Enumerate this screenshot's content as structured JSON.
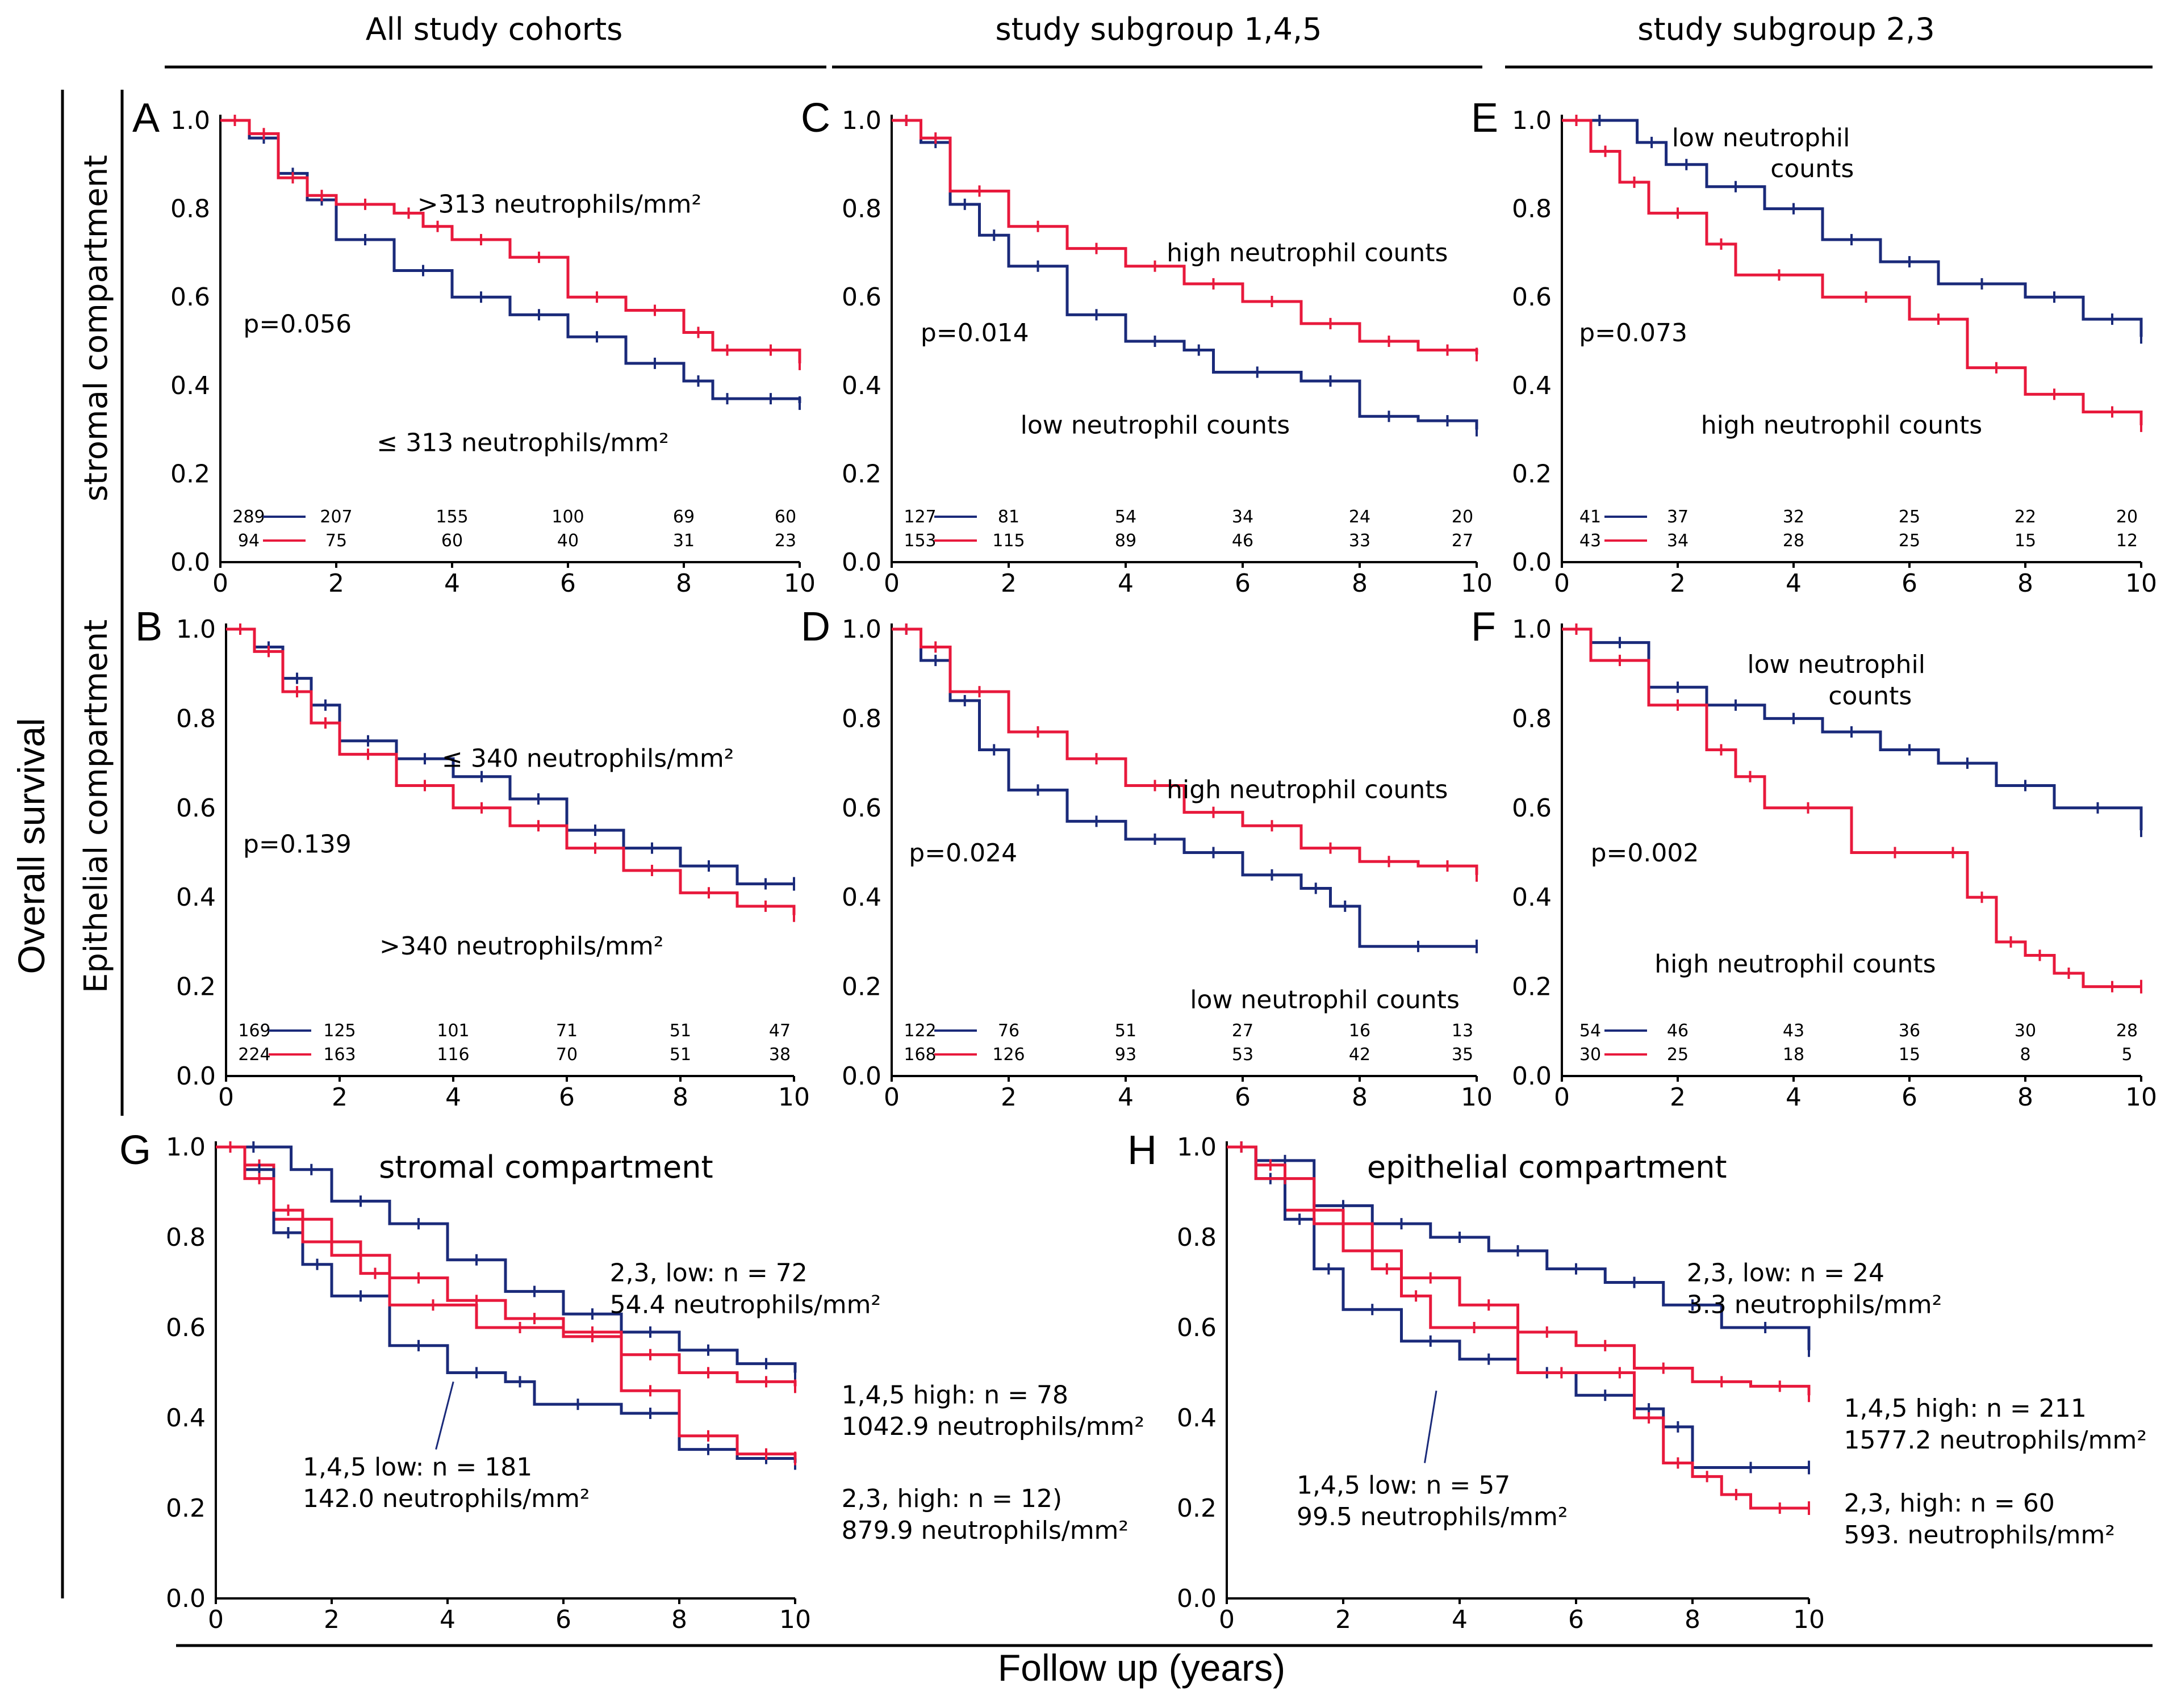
{
  "figure": {
    "column_titles": [
      "All study cohorts",
      "study subgroup 1,4,5",
      "study subgroup 2,3"
    ],
    "y_title": "Overall survival",
    "row_titles": [
      "stromal compartment",
      "Epithelial compartment"
    ],
    "x_title": "Follow up (years)"
  },
  "colors": {
    "low": "#1a2a7a",
    "high": "#e8193c"
  },
  "chart_data": [
    {
      "id": "A",
      "type": "line",
      "xlim": [
        0,
        10
      ],
      "ylim": [
        0,
        1
      ],
      "xticks": [
        "0",
        "2",
        "4",
        "6",
        "8",
        "10"
      ],
      "yticks": [
        "0.0",
        "0.2",
        "0.4",
        "0.6",
        "0.8",
        "1.0"
      ],
      "pvalue": "p=0.056",
      "annotations": [
        ">313 neutrophils/mm²",
        "≤ 313 neutrophils/mm²"
      ],
      "series": [
        {
          "name": "≤ 313 neutrophils/mm²",
          "color": "low",
          "x": [
            0,
            0.5,
            1,
            1.5,
            2,
            3,
            4,
            5,
            6,
            7,
            8,
            8.5,
            9,
            10
          ],
          "y": [
            1,
            0.96,
            0.88,
            0.82,
            0.73,
            0.66,
            0.6,
            0.56,
            0.51,
            0.45,
            0.41,
            0.37,
            0.37,
            0.36
          ]
        },
        {
          "name": ">313 neutrophils/mm²",
          "color": "high",
          "x": [
            0,
            0.5,
            1,
            1.5,
            2,
            3,
            3.5,
            4,
            5,
            6,
            7,
            8,
            8.5,
            9,
            10
          ],
          "y": [
            1,
            0.97,
            0.87,
            0.83,
            0.81,
            0.79,
            0.76,
            0.73,
            0.69,
            0.6,
            0.57,
            0.52,
            0.48,
            0.48,
            0.45
          ]
        }
      ],
      "risk": {
        "low": [
          "289",
          "207",
          "155",
          "100",
          "69",
          "60"
        ],
        "high": [
          "94",
          "75",
          "60",
          "40",
          "31",
          "23"
        ]
      }
    },
    {
      "id": "B",
      "type": "line",
      "xlim": [
        0,
        10
      ],
      "ylim": [
        0,
        1
      ],
      "xticks": [
        "0",
        "2",
        "4",
        "6",
        "8",
        "10"
      ],
      "yticks": [
        "0.0",
        "0.2",
        "0.4",
        "0.6",
        "0.8",
        "1.0"
      ],
      "pvalue": "p=0.139",
      "annotations": [
        "≤ 340 neutrophils/mm²",
        ">340 neutrophils/mm²"
      ],
      "series": [
        {
          "name": "≤ 340 neutrophils/mm²",
          "color": "low",
          "x": [
            0,
            0.5,
            1,
            1.5,
            2,
            3,
            4,
            5,
            6,
            7,
            8,
            9,
            10
          ],
          "y": [
            1,
            0.96,
            0.89,
            0.83,
            0.75,
            0.71,
            0.67,
            0.62,
            0.55,
            0.51,
            0.47,
            0.43,
            0.43
          ]
        },
        {
          "name": ">340 neutrophils/mm²",
          "color": "high",
          "x": [
            0,
            0.5,
            1,
            1.5,
            2,
            3,
            4,
            5,
            6,
            7,
            8,
            9,
            10
          ],
          "y": [
            1,
            0.95,
            0.86,
            0.79,
            0.72,
            0.65,
            0.6,
            0.56,
            0.51,
            0.46,
            0.41,
            0.38,
            0.36
          ]
        }
      ],
      "risk": {
        "low": [
          "169",
          "125",
          "101",
          "71",
          "51",
          "47"
        ],
        "high": [
          "224",
          "163",
          "116",
          "70",
          "51",
          "38"
        ]
      }
    },
    {
      "id": "C",
      "type": "line",
      "xlim": [
        0,
        10
      ],
      "ylim": [
        0,
        1
      ],
      "xticks": [
        "0",
        "2",
        "4",
        "6",
        "8",
        "10"
      ],
      "yticks": [
        "0.0",
        "0.2",
        "0.4",
        "0.6",
        "0.8",
        "1.0"
      ],
      "pvalue": "p=0.014",
      "annotations": [
        "high neutrophil counts",
        "low neutrophil counts"
      ],
      "series": [
        {
          "name": "low neutrophil counts",
          "color": "low",
          "x": [
            0,
            0.5,
            1,
            1.5,
            2,
            3,
            4,
            5,
            5.5,
            7,
            8,
            9,
            10
          ],
          "y": [
            1,
            0.95,
            0.81,
            0.74,
            0.67,
            0.56,
            0.5,
            0.48,
            0.43,
            0.41,
            0.33,
            0.32,
            0.3
          ]
        },
        {
          "name": "high neutrophil counts",
          "color": "high",
          "x": [
            0,
            0.5,
            1,
            2,
            3,
            4,
            5,
            6,
            7,
            8,
            9,
            10
          ],
          "y": [
            1,
            0.96,
            0.84,
            0.76,
            0.71,
            0.67,
            0.63,
            0.59,
            0.54,
            0.5,
            0.48,
            0.47
          ]
        }
      ],
      "risk": {
        "low": [
          "127",
          "81",
          "54",
          "34",
          "24",
          "20"
        ],
        "high": [
          "153",
          "115",
          "89",
          "46",
          "33",
          "27"
        ]
      }
    },
    {
      "id": "D",
      "type": "line",
      "xlim": [
        0,
        10
      ],
      "ylim": [
        0,
        1
      ],
      "xticks": [
        "0",
        "2",
        "4",
        "6",
        "8",
        "10"
      ],
      "yticks": [
        "0.0",
        "0.2",
        "0.4",
        "0.6",
        "0.8",
        "1.0"
      ],
      "pvalue": "p=0.024",
      "annotations": [
        "high neutrophil counts",
        "low neutrophil counts"
      ],
      "series": [
        {
          "name": "low neutrophil counts",
          "color": "low",
          "x": [
            0,
            0.5,
            1,
            1.5,
            2,
            3,
            4,
            5,
            6,
            7,
            7.5,
            8,
            10
          ],
          "y": [
            1,
            0.93,
            0.84,
            0.73,
            0.64,
            0.57,
            0.53,
            0.5,
            0.45,
            0.42,
            0.38,
            0.29,
            0.29
          ]
        },
        {
          "name": "high neutrophil counts",
          "color": "high",
          "x": [
            0,
            0.5,
            1,
            2,
            3,
            4,
            5,
            6,
            7,
            8,
            9,
            10
          ],
          "y": [
            1,
            0.96,
            0.86,
            0.77,
            0.71,
            0.65,
            0.59,
            0.56,
            0.51,
            0.48,
            0.47,
            0.45
          ]
        }
      ],
      "risk": {
        "low": [
          "122",
          "76",
          "51",
          "27",
          "16",
          "13"
        ],
        "high": [
          "168",
          "126",
          "93",
          "53",
          "42",
          "35"
        ]
      }
    },
    {
      "id": "E",
      "type": "line",
      "xlim": [
        0,
        10
      ],
      "ylim": [
        0,
        1
      ],
      "xticks": [
        "0",
        "2",
        "4",
        "6",
        "8",
        "10"
      ],
      "yticks": [
        "0.0",
        "0.2",
        "0.4",
        "0.6",
        "0.8",
        "1.0"
      ],
      "pvalue": "p=0.073",
      "annotations": [
        "low neutrophil",
        "counts",
        "high neutrophil counts"
      ],
      "series": [
        {
          "name": "low neutrophil counts",
          "color": "low",
          "x": [
            0,
            1.3,
            1.8,
            2.5,
            3.5,
            4.5,
            5.5,
            6.5,
            8,
            9,
            10
          ],
          "y": [
            1,
            0.95,
            0.9,
            0.85,
            0.8,
            0.73,
            0.68,
            0.63,
            0.6,
            0.55,
            0.51
          ]
        },
        {
          "name": "high neutrophil counts",
          "color": "high",
          "x": [
            0,
            0.5,
            1,
            1.5,
            2.5,
            3,
            4.5,
            6,
            7,
            8,
            9,
            10
          ],
          "y": [
            1,
            0.93,
            0.86,
            0.79,
            0.72,
            0.65,
            0.6,
            0.55,
            0.44,
            0.38,
            0.34,
            0.31
          ]
        }
      ],
      "risk": {
        "low": [
          "41",
          "37",
          "32",
          "25",
          "22",
          "20"
        ],
        "high": [
          "43",
          "34",
          "28",
          "25",
          "15",
          "12"
        ]
      }
    },
    {
      "id": "F",
      "type": "line",
      "xlim": [
        0,
        10
      ],
      "ylim": [
        0,
        1
      ],
      "xticks": [
        "0",
        "2",
        "4",
        "6",
        "8",
        "10"
      ],
      "yticks": [
        "0.0",
        "0.2",
        "0.4",
        "0.6",
        "0.8",
        "1.0"
      ],
      "pvalue": "p=0.002",
      "annotations": [
        "low neutrophil",
        "counts",
        "high neutrophil counts"
      ],
      "series": [
        {
          "name": "low neutrophil counts",
          "color": "low",
          "x": [
            0,
            0.5,
            1.5,
            2.5,
            3.5,
            4.5,
            5.5,
            6.5,
            7.5,
            8.5,
            10
          ],
          "y": [
            1,
            0.97,
            0.87,
            0.83,
            0.8,
            0.77,
            0.73,
            0.7,
            0.65,
            0.6,
            0.55
          ]
        },
        {
          "name": "high neutrophil counts",
          "color": "high",
          "x": [
            0,
            0.5,
            1.5,
            2.5,
            3,
            3.5,
            5,
            6.5,
            7,
            7.5,
            8,
            8.5,
            9,
            10
          ],
          "y": [
            1,
            0.93,
            0.83,
            0.73,
            0.67,
            0.6,
            0.5,
            0.5,
            0.4,
            0.3,
            0.27,
            0.23,
            0.2,
            0.2
          ]
        }
      ],
      "risk": {
        "low": [
          "54",
          "46",
          "43",
          "36",
          "30",
          "28"
        ],
        "high": [
          "30",
          "25",
          "18",
          "15",
          "8",
          "5"
        ]
      }
    },
    {
      "id": "G",
      "type": "line",
      "title": "stromal compartment",
      "xlim": [
        0,
        10
      ],
      "ylim": [
        0,
        1
      ],
      "xticks": [
        "0",
        "2",
        "4",
        "6",
        "8",
        "10"
      ],
      "yticks": [
        "0.0",
        "0.2",
        "0.4",
        "0.6",
        "0.8",
        "1.0"
      ],
      "annotations": [
        "2,3, low: n = 72",
        "54.4 neutrophils/mm²",
        "1,4,5 high: n = 78",
        "1042.9 neutrophils/mm²",
        "1,4,5 low: n = 181",
        "142.0 neutrophils/mm²",
        "2,3, high: n = 12)",
        "879.9 neutrophils/mm²"
      ],
      "series": [
        {
          "name": "2,3, low",
          "color": "low",
          "x": [
            0,
            1.3,
            2,
            3,
            4,
            5,
            6,
            7,
            8,
            9,
            10
          ],
          "y": [
            1,
            0.95,
            0.88,
            0.83,
            0.75,
            0.68,
            0.63,
            0.59,
            0.55,
            0.52,
            0.5
          ]
        },
        {
          "name": "1,4,5 high",
          "color": "high",
          "x": [
            0,
            0.5,
            1,
            2,
            3,
            4,
            5,
            6,
            7,
            8,
            9,
            10
          ],
          "y": [
            1,
            0.96,
            0.84,
            0.76,
            0.71,
            0.66,
            0.62,
            0.59,
            0.54,
            0.5,
            0.48,
            0.47
          ]
        },
        {
          "name": "1,4,5 low",
          "color": "low",
          "x": [
            0,
            0.5,
            1,
            1.5,
            2,
            3,
            4,
            5,
            5.5,
            7,
            8,
            9,
            10
          ],
          "y": [
            1,
            0.95,
            0.81,
            0.74,
            0.67,
            0.56,
            0.5,
            0.48,
            0.43,
            0.41,
            0.33,
            0.31,
            0.3
          ]
        },
        {
          "name": "2,3, high",
          "color": "high",
          "x": [
            0,
            0.5,
            1,
            1.5,
            2.5,
            3,
            4.5,
            6,
            7,
            8,
            9,
            10
          ],
          "y": [
            1,
            0.93,
            0.86,
            0.79,
            0.72,
            0.65,
            0.6,
            0.58,
            0.46,
            0.36,
            0.32,
            0.31
          ]
        }
      ]
    },
    {
      "id": "H",
      "type": "line",
      "title": "epithelial compartment",
      "xlim": [
        0,
        10
      ],
      "ylim": [
        0,
        1
      ],
      "xticks": [
        "0",
        "2",
        "4",
        "6",
        "8",
        "10"
      ],
      "yticks": [
        "0.0",
        "0.2",
        "0.4",
        "0.6",
        "0.8",
        "1.0"
      ],
      "annotations": [
        "2,3, low: n = 24",
        "3.3 neutrophils/mm²",
        "1,4,5 high: n = 211",
        "1577.2 neutrophils/mm²",
        "1,4,5 low: n = 57",
        "99.5 neutrophils/mm²",
        "2,3, high: n = 60",
        "593. neutrophils/mm²"
      ],
      "series": [
        {
          "name": "2,3, low",
          "color": "low",
          "x": [
            0,
            0.5,
            1.5,
            2.5,
            3.5,
            4.5,
            5.5,
            6.5,
            7.5,
            8.5,
            10
          ],
          "y": [
            1,
            0.97,
            0.87,
            0.83,
            0.8,
            0.77,
            0.73,
            0.7,
            0.65,
            0.6,
            0.55
          ]
        },
        {
          "name": "1,4,5 high",
          "color": "high",
          "x": [
            0,
            0.5,
            1,
            2,
            3,
            4,
            5,
            6,
            7,
            8,
            9,
            10
          ],
          "y": [
            1,
            0.96,
            0.86,
            0.77,
            0.71,
            0.65,
            0.59,
            0.56,
            0.51,
            0.48,
            0.47,
            0.45
          ]
        },
        {
          "name": "1,4,5 low",
          "color": "low",
          "x": [
            0,
            0.5,
            1,
            1.5,
            2,
            3,
            4,
            5,
            6,
            7,
            7.5,
            8,
            10
          ],
          "y": [
            1,
            0.93,
            0.84,
            0.73,
            0.64,
            0.57,
            0.53,
            0.5,
            0.45,
            0.42,
            0.38,
            0.29,
            0.29
          ]
        },
        {
          "name": "2,3, high",
          "color": "high",
          "x": [
            0,
            0.5,
            1.5,
            2.5,
            3,
            3.5,
            5,
            6.5,
            7,
            7.5,
            8,
            8.5,
            9,
            10
          ],
          "y": [
            1,
            0.93,
            0.83,
            0.73,
            0.67,
            0.6,
            0.5,
            0.5,
            0.4,
            0.3,
            0.27,
            0.23,
            0.2,
            0.2
          ]
        }
      ]
    }
  ]
}
